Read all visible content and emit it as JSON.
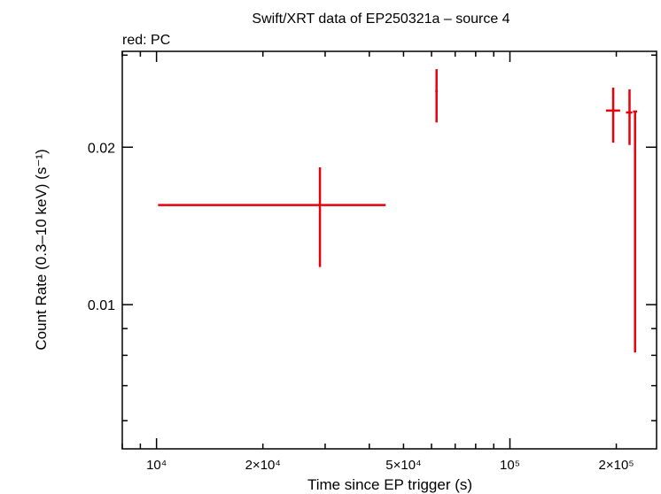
{
  "chart_data": {
    "type": "scatter",
    "title": "Swift/XRT data of EP250321a – source 4",
    "subtitle": "red: PC",
    "xlabel": "Time since EP trigger (s)",
    "ylabel": "Count Rate (0.3–10 keV) (s⁻¹)",
    "x_scale": "log",
    "y_scale": "log",
    "xlim": [
      8000,
      260000
    ],
    "ylim": [
      0.0053,
      0.0305
    ],
    "x_ticks": [
      {
        "value": 10000,
        "label": "10⁴"
      },
      {
        "value": 20000,
        "label": "2×10⁴"
      },
      {
        "value": 50000,
        "label": "5×10⁴"
      },
      {
        "value": 100000,
        "label": "10⁵"
      },
      {
        "value": 200000,
        "label": "2×10⁵"
      }
    ],
    "y_ticks": [
      {
        "value": 0.01,
        "label": "0.01"
      },
      {
        "value": 0.02,
        "label": "0.02"
      }
    ],
    "grid": false,
    "series": [
      {
        "color": "#e8000b",
        "points": [
          {
            "x": 29000,
            "x_lo": 10100,
            "x_hi": 44500,
            "y": 0.0155,
            "y_lo": 0.0118,
            "y_hi": 0.0183
          },
          {
            "x": 62000,
            "x_lo": 61500,
            "x_hi": 62500,
            "y": 0.0256,
            "y_lo": 0.0223,
            "y_hi": 0.0282
          },
          {
            "x": 196000,
            "x_lo": 187000,
            "x_hi": 205000,
            "y": 0.0235,
            "y_lo": 0.0204,
            "y_hi": 0.026
          },
          {
            "x": 218000,
            "x_lo": 213000,
            "x_hi": 222000,
            "y": 0.0233,
            "y_lo": 0.0202,
            "y_hi": 0.0258
          },
          {
            "x": 226000,
            "x_lo": 223000,
            "x_hi": 229000,
            "y": 0.0234,
            "y_lo": 0.0081,
            "y_hi": 0.0234
          }
        ]
      }
    ]
  }
}
